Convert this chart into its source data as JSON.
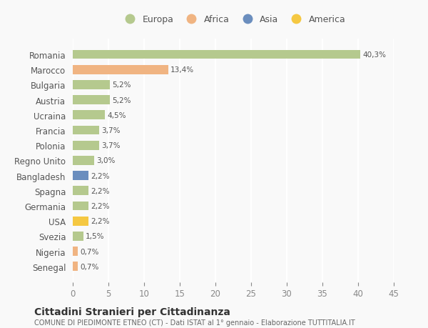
{
  "countries": [
    "Romania",
    "Marocco",
    "Bulgaria",
    "Austria",
    "Ucraina",
    "Francia",
    "Polonia",
    "Regno Unito",
    "Bangladesh",
    "Spagna",
    "Germania",
    "USA",
    "Svezia",
    "Nigeria",
    "Senegal"
  ],
  "values": [
    40.3,
    13.4,
    5.2,
    5.2,
    4.5,
    3.7,
    3.7,
    3.0,
    2.2,
    2.2,
    2.2,
    2.2,
    1.5,
    0.7,
    0.7
  ],
  "labels": [
    "40,3%",
    "13,4%",
    "5,2%",
    "5,2%",
    "4,5%",
    "3,7%",
    "3,7%",
    "3,0%",
    "2,2%",
    "2,2%",
    "2,2%",
    "2,2%",
    "1,5%",
    "0,7%",
    "0,7%"
  ],
  "colors": [
    "#b5c98e",
    "#f0b482",
    "#b5c98e",
    "#b5c98e",
    "#b5c98e",
    "#b5c98e",
    "#b5c98e",
    "#b5c98e",
    "#6b8ebe",
    "#b5c98e",
    "#b5c98e",
    "#f5c842",
    "#b5c98e",
    "#f0b482",
    "#f0b482"
  ],
  "legend_labels": [
    "Europa",
    "Africa",
    "Asia",
    "America"
  ],
  "legend_colors": [
    "#b5c98e",
    "#f0b482",
    "#6b8ebe",
    "#f5c842"
  ],
  "xlim": [
    0,
    45
  ],
  "xticks": [
    0,
    5,
    10,
    15,
    20,
    25,
    30,
    35,
    40,
    45
  ],
  "title": "Cittadini Stranieri per Cittadinanza",
  "subtitle": "COMUNE DI PIEDIMONTE ETNEO (CT) - Dati ISTAT al 1° gennaio - Elaborazione TUTTITALIA.IT",
  "background_color": "#f9f9f9",
  "grid_color": "#ffffff",
  "bar_height": 0.6
}
